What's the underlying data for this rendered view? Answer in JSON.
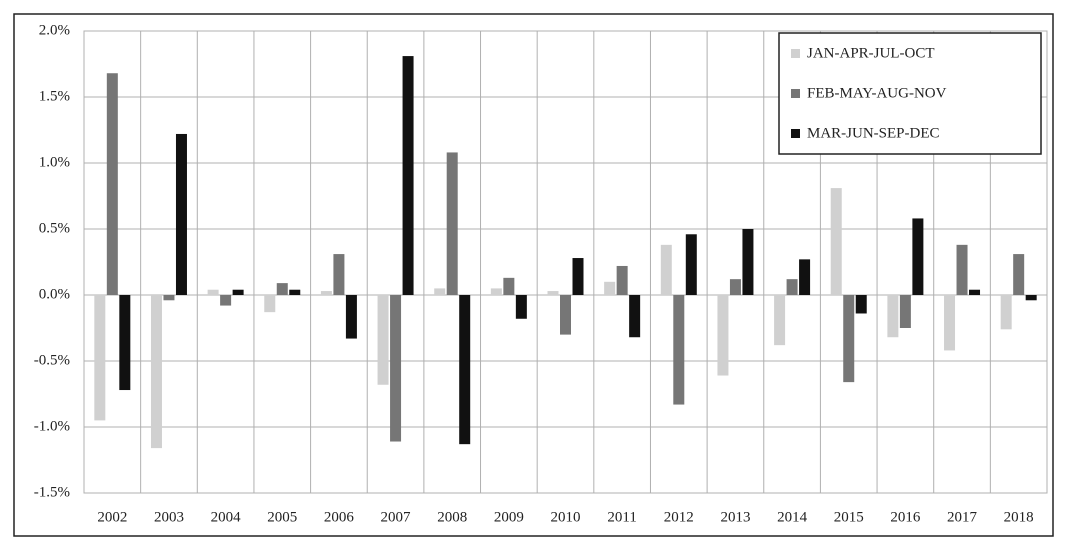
{
  "chart_data": {
    "type": "bar",
    "categories": [
      "2002",
      "2003",
      "2004",
      "2005",
      "2006",
      "2007",
      "2008",
      "2009",
      "2010",
      "2011",
      "2012",
      "2013",
      "2014",
      "2015",
      "2016",
      "2017",
      "2018"
    ],
    "series": [
      {
        "name": "JAN-APR-JUL-OCT",
        "color": "#d0d0d0",
        "values": [
          -0.95,
          -1.16,
          0.04,
          -0.13,
          0.03,
          -0.68,
          0.05,
          0.05,
          0.03,
          0.1,
          0.38,
          -0.61,
          -0.38,
          0.81,
          -0.32,
          -0.42,
          -0.26
        ]
      },
      {
        "name": "FEB-MAY-AUG-NOV",
        "color": "#767676",
        "values": [
          1.68,
          -0.04,
          -0.08,
          0.09,
          0.31,
          -1.11,
          1.08,
          0.13,
          -0.3,
          0.22,
          -0.83,
          0.12,
          0.12,
          -0.66,
          -0.25,
          0.38,
          0.31
        ]
      },
      {
        "name": "MAR-JUN-SEP-DEC",
        "color": "#111111",
        "values": [
          -0.72,
          1.22,
          0.04,
          0.04,
          -0.33,
          1.81,
          -1.13,
          -0.18,
          0.28,
          -0.32,
          0.46,
          0.5,
          0.27,
          -0.14,
          0.58,
          0.04,
          -0.04
        ]
      }
    ],
    "ylim": [
      -1.5,
      2.0
    ],
    "yticks": [
      {
        "value": -1.5,
        "label": "-1.5%"
      },
      {
        "value": -1.0,
        "label": "-1.0%"
      },
      {
        "value": -0.5,
        "label": "-0.5%"
      },
      {
        "value": 0.0,
        "label": "0.0%"
      },
      {
        "value": 0.5,
        "label": "0.5%"
      },
      {
        "value": 1.0,
        "label": "1.0%"
      },
      {
        "value": 1.5,
        "label": "1.5%"
      },
      {
        "value": 2.0,
        "label": "2.0%"
      }
    ],
    "grid": true,
    "legend": "top-right"
  }
}
